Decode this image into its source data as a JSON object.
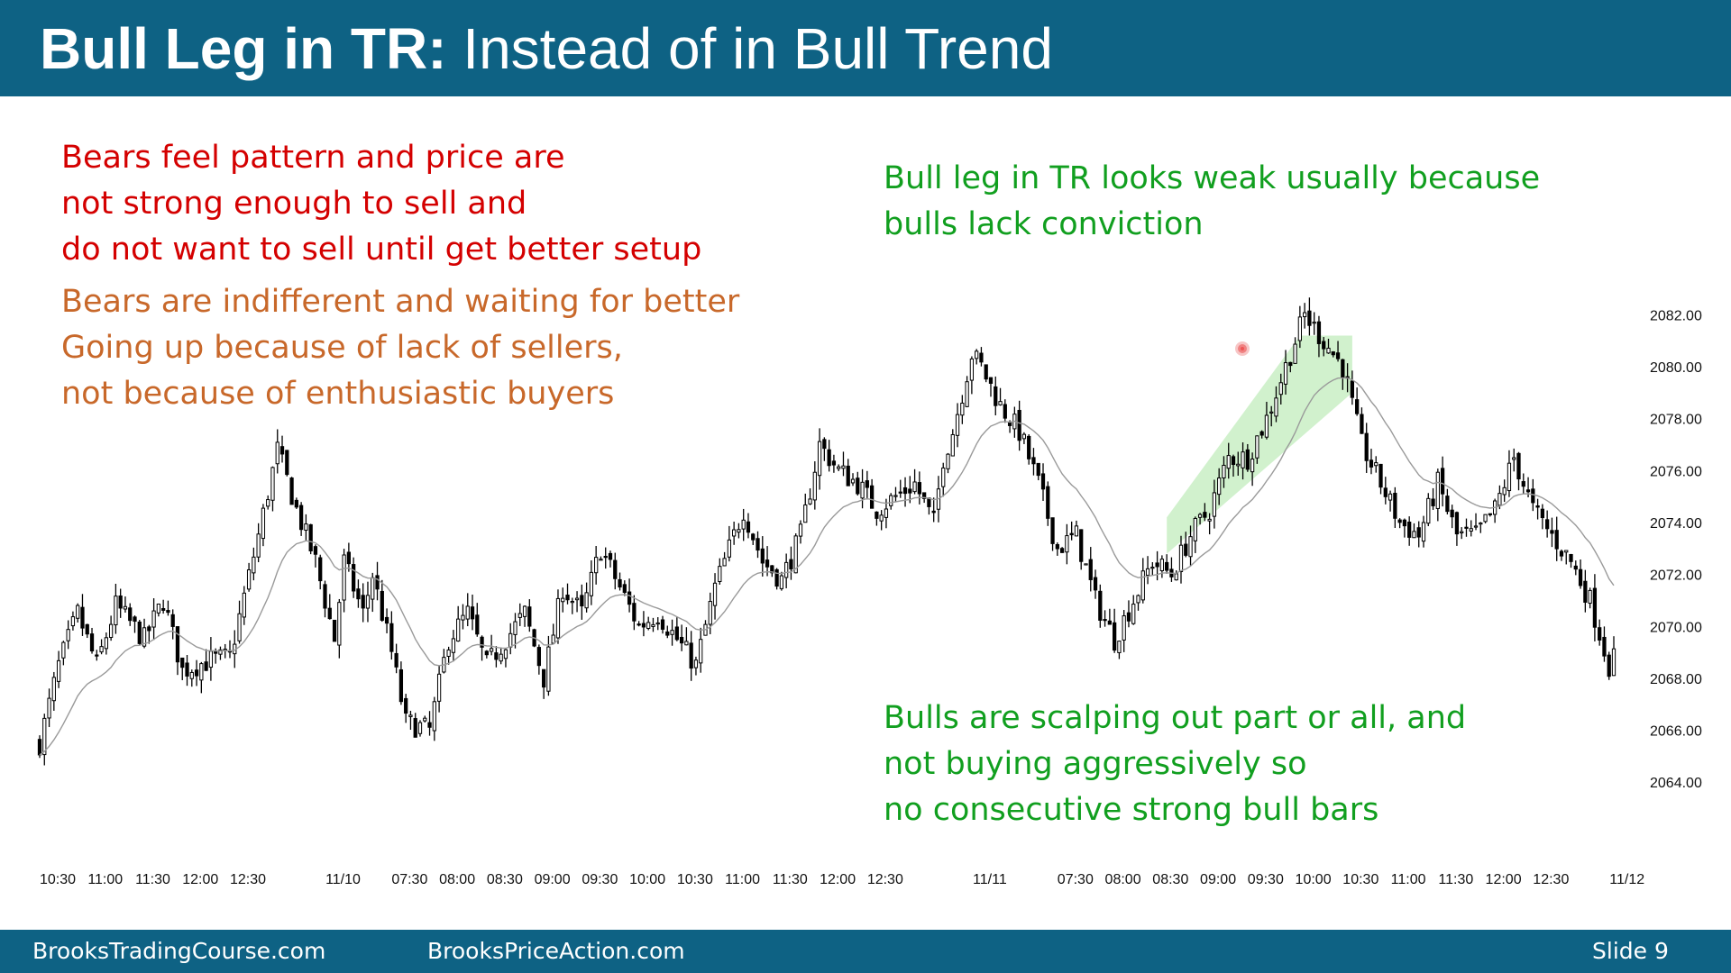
{
  "header": {
    "title_bold": "Bull Leg in TR:",
    "title_rest": "Instead of in Bull Trend"
  },
  "notes": {
    "bears_red": [
      "Bears feel pattern and price are",
      "not strong enough to sell and",
      "do not want to sell until get better setup"
    ],
    "bears_orange": [
      "Bears are indifferent and waiting for better",
      "Going up because of lack of sellers,",
      "not because of enthusiastic buyers"
    ],
    "bull_leg": [
      "Bull leg in TR looks weak usually because",
      "bulls lack conviction"
    ],
    "bulls_scalping": [
      "Bulls are scalping out part or all, and",
      "not buying aggressively so",
      "no consecutive strong bull bars"
    ]
  },
  "footer": {
    "left": "BrooksTradingCourse.com",
    "center": "BrooksPriceAction.com",
    "right": "Slide  9"
  },
  "colors": {
    "header_bg": "#0e6284",
    "bear_text": "#d40000",
    "orange_text": "#c8682a",
    "bull_text": "#119f1f",
    "channel_fill": "#c9efc4",
    "candle": "#000000",
    "moving_average": "#9a9a9a"
  },
  "chart_data": {
    "type": "candlestick",
    "y_ticks": [
      "2082.00",
      "2080.00",
      "2078.00",
      "2076.00",
      "2074.00",
      "2072.00",
      "2070.00",
      "2068.00",
      "2066.00",
      "2064.00"
    ],
    "ylim": [
      2063.0,
      2082.5
    ],
    "x_ticks": [
      "10:30",
      "11:00",
      "11:30",
      "12:00",
      "12:30",
      "11/10",
      "07:30",
      "08:00",
      "08:30",
      "09:00",
      "09:30",
      "10:00",
      "10:30",
      "11:00",
      "11:30",
      "12:00",
      "12:30",
      "11/11",
      "07:30",
      "08:00",
      "08:30",
      "09:00",
      "09:30",
      "10:00",
      "10:30",
      "11:00",
      "11:30",
      "12:00",
      "12:30",
      "11/12"
    ],
    "x_tick_bar_index": [
      0,
      10,
      20,
      30,
      40,
      60,
      74,
      84,
      94,
      104,
      114,
      124,
      134,
      144,
      154,
      164,
      174,
      196,
      214,
      224,
      234,
      244,
      254,
      264,
      274,
      284,
      294,
      304,
      314,
      330
    ],
    "n_bars": 332,
    "close_path": [
      [
        0,
        2065.5
      ],
      [
        4,
        2068.5
      ],
      [
        8,
        2070.5
      ],
      [
        12,
        2068.5
      ],
      [
        16,
        2070.8
      ],
      [
        22,
        2069.5
      ],
      [
        26,
        2071.0
      ],
      [
        30,
        2068.3
      ],
      [
        36,
        2068.7
      ],
      [
        40,
        2068.8
      ],
      [
        46,
        2073.5
      ],
      [
        50,
        2076.8
      ],
      [
        54,
        2074.5
      ],
      [
        58,
        2072.5
      ],
      [
        62,
        2069.5
      ],
      [
        64,
        2072.5
      ],
      [
        68,
        2070.5
      ],
      [
        70,
        2072.0
      ],
      [
        74,
        2069.0
      ],
      [
        77,
        2066.3
      ],
      [
        82,
        2066.0
      ],
      [
        86,
        2069.5
      ],
      [
        90,
        2070.5
      ],
      [
        94,
        2068.5
      ],
      [
        98,
        2069.5
      ],
      [
        102,
        2070.5
      ],
      [
        106,
        2068.0
      ],
      [
        110,
        2071.5
      ],
      [
        114,
        2070.5
      ],
      [
        118,
        2073.0
      ],
      [
        122,
        2071.5
      ],
      [
        126,
        2070.0
      ],
      [
        130,
        2070.5
      ],
      [
        134,
        2069.5
      ],
      [
        138,
        2068.5
      ],
      [
        142,
        2071.5
      ],
      [
        148,
        2074.5
      ],
      [
        152,
        2072.5
      ],
      [
        156,
        2071.8
      ],
      [
        160,
        2073.5
      ],
      [
        164,
        2077.0
      ],
      [
        168,
        2076.0
      ],
      [
        172,
        2075.5
      ],
      [
        176,
        2074.5
      ],
      [
        180,
        2075.0
      ],
      [
        184,
        2075.5
      ],
      [
        188,
        2074.0
      ],
      [
        190,
        2076.5
      ],
      [
        192,
        2077.5
      ],
      [
        194,
        2079.0
      ],
      [
        196,
        2080.5
      ],
      [
        198,
        2080.0
      ],
      [
        202,
        2078.5
      ],
      [
        206,
        2077.5
      ],
      [
        210,
        2075.5
      ],
      [
        214,
        2073.0
      ],
      [
        218,
        2073.5
      ],
      [
        222,
        2071.0
      ],
      [
        226,
        2069.5
      ],
      [
        230,
        2071.0
      ],
      [
        234,
        2072.5
      ],
      [
        238,
        2072.0
      ],
      [
        242,
        2073.5
      ],
      [
        246,
        2074.5
      ],
      [
        250,
        2076.5
      ],
      [
        254,
        2076.5
      ],
      [
        258,
        2078.0
      ],
      [
        262,
        2080.0
      ],
      [
        266,
        2082.0
      ],
      [
        270,
        2081.0
      ],
      [
        274,
        2080.0
      ],
      [
        278,
        2077.0
      ],
      [
        282,
        2075.5
      ],
      [
        286,
        2074.0
      ],
      [
        290,
        2073.5
      ],
      [
        294,
        2075.5
      ],
      [
        298,
        2073.5
      ],
      [
        302,
        2073.5
      ],
      [
        306,
        2074.5
      ],
      [
        310,
        2076.5
      ],
      [
        314,
        2074.5
      ],
      [
        318,
        2073.5
      ],
      [
        322,
        2072.5
      ],
      [
        326,
        2071.0
      ],
      [
        330,
        2068.5
      ],
      [
        332,
        2069.0
      ]
    ],
    "channel_polygon": [
      [
        237,
        2072.8
      ],
      [
        276,
        2079.0
      ],
      [
        276,
        2081.2
      ],
      [
        265,
        2081.2
      ],
      [
        237,
        2074.2
      ]
    ],
    "has_moving_average": true,
    "grid": false
  }
}
